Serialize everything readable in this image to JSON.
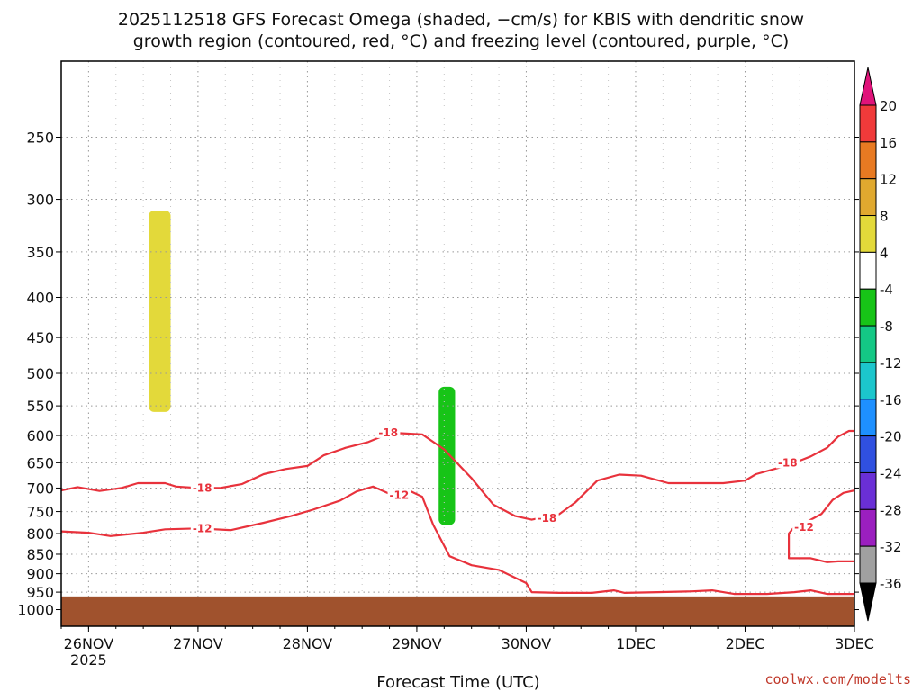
{
  "title": {
    "line1": "2025112518 GFS Forecast Omega (shaded, −cm/s) for KBIS with dendritic snow",
    "line2": "growth region (contoured, red, °C) and freezing level (contoured, purple, °C)"
  },
  "credit": "coolwx.com/modelts",
  "chart_data": {
    "type": "heatmap",
    "xlabel": "Forecast Time (UTC)",
    "x_ticks": [
      {
        "label": "26NOV",
        "sub": "2025",
        "day": 0
      },
      {
        "label": "27NOV",
        "day": 1
      },
      {
        "label": "28NOV",
        "day": 2
      },
      {
        "label": "29NOV",
        "day": 3
      },
      {
        "label": "30NOV",
        "day": 4
      },
      {
        "label": "1DEC",
        "day": 5
      },
      {
        "label": "2DEC",
        "day": 6
      },
      {
        "label": "3DEC",
        "day": 7
      }
    ],
    "x_range_days": [
      -0.25,
      7.0
    ],
    "y_scale": "log-pressure (inverted)",
    "y_range_hpa": [
      200,
      1050
    ],
    "y_ticks": [
      250,
      300,
      350,
      400,
      450,
      500,
      550,
      600,
      650,
      700,
      750,
      800,
      850,
      900,
      950,
      1000
    ],
    "grid": true,
    "colorbar": {
      "levels": [
        -36,
        -32,
        -28,
        -24,
        -20,
        -16,
        -12,
        -8,
        -4,
        4,
        8,
        12,
        16,
        20
      ],
      "colors": [
        "#000000",
        "#a0a0a0",
        "#9b1fbf",
        "#6a2fd6",
        "#3050e0",
        "#1e90ff",
        "#1cc6cc",
        "#14c885",
        "#17c417",
        "#ffffff",
        "#e3d93a",
        "#e0a92f",
        "#e87a22",
        "#f03a3a",
        "#e0137a"
      ]
    },
    "ground_pressure_hpa": 962,
    "ground_color": "#a0522d",
    "contours": [
      {
        "level": -18,
        "label": "-18",
        "color": "#e8323c",
        "points": [
          [
            -0.25,
            705
          ],
          [
            -0.1,
            698
          ],
          [
            0.1,
            706
          ],
          [
            0.3,
            700
          ],
          [
            0.45,
            690
          ],
          [
            0.7,
            690
          ],
          [
            0.8,
            697
          ],
          [
            1.0,
            700
          ],
          [
            1.2,
            700
          ],
          [
            1.4,
            692
          ],
          [
            1.6,
            672
          ],
          [
            1.8,
            662
          ],
          [
            2.0,
            656
          ],
          [
            2.15,
            636
          ],
          [
            2.35,
            622
          ],
          [
            2.55,
            612
          ],
          [
            2.7,
            600
          ],
          [
            2.85,
            596
          ],
          [
            3.05,
            598
          ],
          [
            3.25,
            625
          ],
          [
            3.5,
            680
          ],
          [
            3.7,
            735
          ],
          [
            3.9,
            760
          ],
          [
            4.05,
            768
          ],
          [
            4.3,
            756
          ],
          [
            4.45,
            730
          ],
          [
            4.65,
            685
          ],
          [
            4.85,
            673
          ],
          [
            5.05,
            675
          ],
          [
            5.3,
            690
          ],
          [
            5.5,
            690
          ],
          [
            5.8,
            690
          ],
          [
            6.0,
            685
          ],
          [
            6.1,
            672
          ],
          [
            6.3,
            660
          ],
          [
            6.45,
            650
          ],
          [
            6.6,
            638
          ],
          [
            6.75,
            622
          ],
          [
            6.85,
            602
          ],
          [
            6.95,
            592
          ],
          [
            7.0,
            592
          ]
        ],
        "label_positions": [
          [
            0.95,
            700
          ],
          [
            2.65,
            595
          ],
          [
            4.1,
            765
          ],
          [
            6.3,
            650
          ]
        ]
      },
      {
        "level": -12,
        "label": "-12",
        "color": "#e8323c",
        "points": [
          [
            -0.25,
            795
          ],
          [
            0.0,
            798
          ],
          [
            0.2,
            806
          ],
          [
            0.5,
            798
          ],
          [
            0.7,
            790
          ],
          [
            1.0,
            788
          ],
          [
            1.3,
            792
          ],
          [
            1.6,
            775
          ],
          [
            1.85,
            760
          ],
          [
            2.05,
            746
          ],
          [
            2.3,
            726
          ],
          [
            2.45,
            707
          ],
          [
            2.6,
            697
          ],
          [
            2.75,
            712
          ],
          [
            2.9,
            702
          ],
          [
            3.05,
            718
          ],
          [
            3.15,
            780
          ],
          [
            3.3,
            855
          ],
          [
            3.5,
            878
          ],
          [
            3.75,
            890
          ],
          [
            4.0,
            925
          ],
          [
            4.05,
            950
          ],
          [
            4.3,
            952
          ],
          [
            4.6,
            952
          ],
          [
            4.8,
            945
          ],
          [
            4.9,
            952
          ],
          [
            5.2,
            950
          ],
          [
            5.5,
            948
          ],
          [
            5.7,
            945
          ],
          [
            5.9,
            955
          ],
          [
            6.2,
            955
          ],
          [
            6.45,
            950
          ],
          [
            6.6,
            945
          ],
          [
            6.75,
            955
          ],
          [
            7.0,
            955
          ]
        ],
        "label_positions": [
          [
            0.95,
            788
          ],
          [
            2.75,
            715
          ]
        ]
      },
      {
        "level": -12,
        "label": "-12",
        "color": "#e8323c",
        "points": [
          [
            7.0,
            705
          ],
          [
            6.9,
            710
          ],
          [
            6.8,
            725
          ],
          [
            6.7,
            755
          ],
          [
            6.55,
            775
          ],
          [
            6.45,
            785
          ],
          [
            6.4,
            800
          ],
          [
            6.4,
            860
          ],
          [
            6.6,
            860
          ],
          [
            6.75,
            870
          ],
          [
            6.85,
            868
          ],
          [
            7.0,
            868
          ]
        ],
        "label_positions": [
          [
            6.45,
            785
          ]
        ]
      }
    ],
    "shaded_regions": [
      {
        "value_range": [
          -8,
          -4
        ],
        "color": "#17c417",
        "x_days": [
          3.2,
          3.35
        ],
        "p_hpa": [
          520,
          780
        ],
        "shape": "blob"
      },
      {
        "value_range": [
          4,
          8
        ],
        "color": "#e3d93a",
        "x_days": [
          0.55,
          0.75
        ],
        "p_hpa": [
          310,
          560
        ],
        "shape": "blob"
      }
    ]
  }
}
